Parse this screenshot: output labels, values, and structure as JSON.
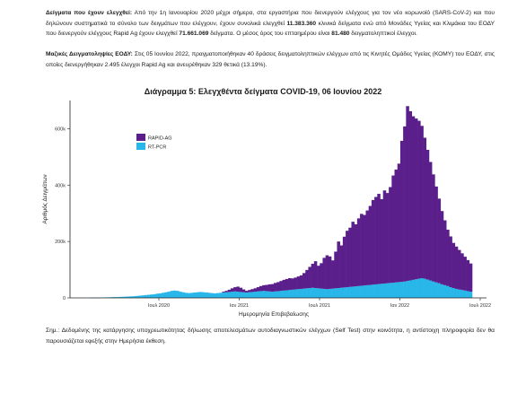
{
  "paragraph1": {
    "label": "Δείγματα που έχουν ελεγχθεί:",
    "t1": " Από την 1η Ιανουαρίου 2020 μέχρι σήμερα, στα εργαστήρια που διενεργούν ελέγχους για τον νέο κορωνοϊό (SARS-CoV-2) και που δηλώνουν συστηματικά το σύνολο των δειγμάτων που ελέγχουν, έχουν συνολικά ελεγχθεί ",
    "n1": "11.383.360",
    "t2": " κλινικά δείγματα ενώ από Μονάδες Υγείας και Κλιμάκια του ΕΟΔΥ που διενεργούν ελέγχους Rapid Ag έχουν ελεγχθεί ",
    "n2": "71.661.069",
    "t3": " δείγματα. Ο μέσος όρος του επταημέρου είναι ",
    "n3": "81.480",
    "t4": " δειγματοληπτικοί έλεγχοι."
  },
  "paragraph2": {
    "label": "Μαζικές Δειγματοληψίες ΕΟΔΥ:",
    "text": " Στις 05 Ιουνίου 2022, πραγματοποιήθηκαν 40 δράσεις δειγματοληπτικών ελέγχων από τις Κινητές Ομάδες Υγείας (ΚΟΜΥ) του ΕΟΔΥ, στις οποίες διενεργήθηκαν 2.495 έλεγχοι Rapid Ag και ανευρέθηκαν 329 θετικά (13.19%)."
  },
  "chart_title": "Διάγραμμα 5: Ελεγχθέντα δείγματα COVID-19, 06 Ιουνίου 2022",
  "note": "Σημ.: Δεδομένης της κατάργησης υποχρεωτικότητας δήλωσης αποτελεσμάτων αυτοδιαγνωστικών ελέγχων (Self Test) στην κοινότητα, η αντίστοιχη πληροφορία δεν θα παρουσιάζεται εφεξής στην Ημερήσια έκθεση.",
  "chart_data": {
    "type": "bar",
    "stacked": true,
    "xlabel": "Ημερομηνία Επιβεβαίωσης",
    "ylabel": "Αριθμός Δειγμάτων",
    "ylim": [
      0,
      700000
    ],
    "yticks": [
      0,
      200000,
      400000,
      600000
    ],
    "ytick_labels": [
      "0",
      "200k",
      "400k",
      "600k"
    ],
    "xtick_labels": [
      "Ιουλ 2020",
      "Ιαν 2021",
      "Ιουλ 2021",
      "Ιαν 2022",
      "Ιουλ 2022"
    ],
    "legend_position": "top-left",
    "series": [
      {
        "name": "RAPID-AG",
        "color": "#5b1f8c",
        "values": [
          0,
          0,
          0,
          0,
          0,
          0,
          0,
          0,
          0,
          0,
          0,
          0,
          0,
          0,
          0,
          0,
          0,
          0,
          0,
          0,
          0,
          0,
          0,
          0,
          0,
          0,
          0,
          0,
          0,
          0,
          0,
          0,
          0,
          0,
          0,
          0,
          0,
          0,
          0,
          0,
          0,
          0,
          0,
          0,
          0,
          0,
          3000,
          5000,
          8000,
          12000,
          15000,
          18000,
          15000,
          10000,
          6000,
          8000,
          10000,
          12000,
          15000,
          18000,
          20000,
          22000,
          25000,
          27000,
          30000,
          32000,
          35000,
          38000,
          40000,
          42000,
          40000,
          42000,
          45000,
          48000,
          55000,
          65000,
          75000,
          85000,
          95000,
          80000,
          90000,
          110000,
          120000,
          115000,
          100000,
          130000,
          165000,
          150000,
          180000,
          200000,
          210000,
          230000,
          220000,
          240000,
          255000,
          250000,
          265000,
          280000,
          300000,
          310000,
          320000,
          300000,
          330000,
          320000,
          340000,
          380000,
          400000,
          420000,
          500000,
          550000,
          620000,
          600000,
          580000,
          570000,
          560000,
          540000,
          500000,
          460000,
          420000,
          380000,
          340000,
          300000,
          260000,
          230000,
          200000,
          180000,
          160000,
          150000,
          140000,
          130000,
          120000,
          110000,
          100000
        ]
      },
      {
        "name": "RT-PCR",
        "color": "#29b6e8",
        "values": [
          500,
          800,
          1000,
          1200,
          1500,
          1800,
          2000,
          2500,
          3000,
          3000,
          3500,
          4000,
          4500,
          5000,
          5500,
          6000,
          7000,
          8000,
          9000,
          10000,
          11000,
          12000,
          13000,
          15000,
          16000,
          18000,
          20000,
          22000,
          25000,
          26000,
          25000,
          22000,
          20000,
          18000,
          17000,
          18000,
          19000,
          20000,
          21000,
          20000,
          19000,
          18000,
          17000,
          16000,
          17000,
          18000,
          19000,
          20000,
          21000,
          22000,
          23000,
          22000,
          21000,
          20000,
          19000,
          20000,
          21000,
          22000,
          23000,
          24000,
          25000,
          24000,
          23000,
          22000,
          23000,
          24000,
          25000,
          26000,
          27000,
          28000,
          29000,
          30000,
          31000,
          32000,
          33000,
          34000,
          35000,
          36000,
          35000,
          34000,
          33000,
          32000,
          31000,
          32000,
          33000,
          34000,
          35000,
          36000,
          37000,
          38000,
          39000,
          40000,
          41000,
          42000,
          43000,
          44000,
          45000,
          46000,
          47000,
          48000,
          49000,
          50000,
          51000,
          52000,
          53000,
          54000,
          55000,
          56000,
          57000,
          58000,
          60000,
          62000,
          64000,
          66000,
          68000,
          70000,
          68000,
          65000,
          62000,
          58000,
          55000,
          52000,
          48000,
          45000,
          42000,
          38000,
          35000,
          32000,
          30000,
          28000,
          26000,
          24000,
          22000,
          20000
        ]
      }
    ]
  }
}
